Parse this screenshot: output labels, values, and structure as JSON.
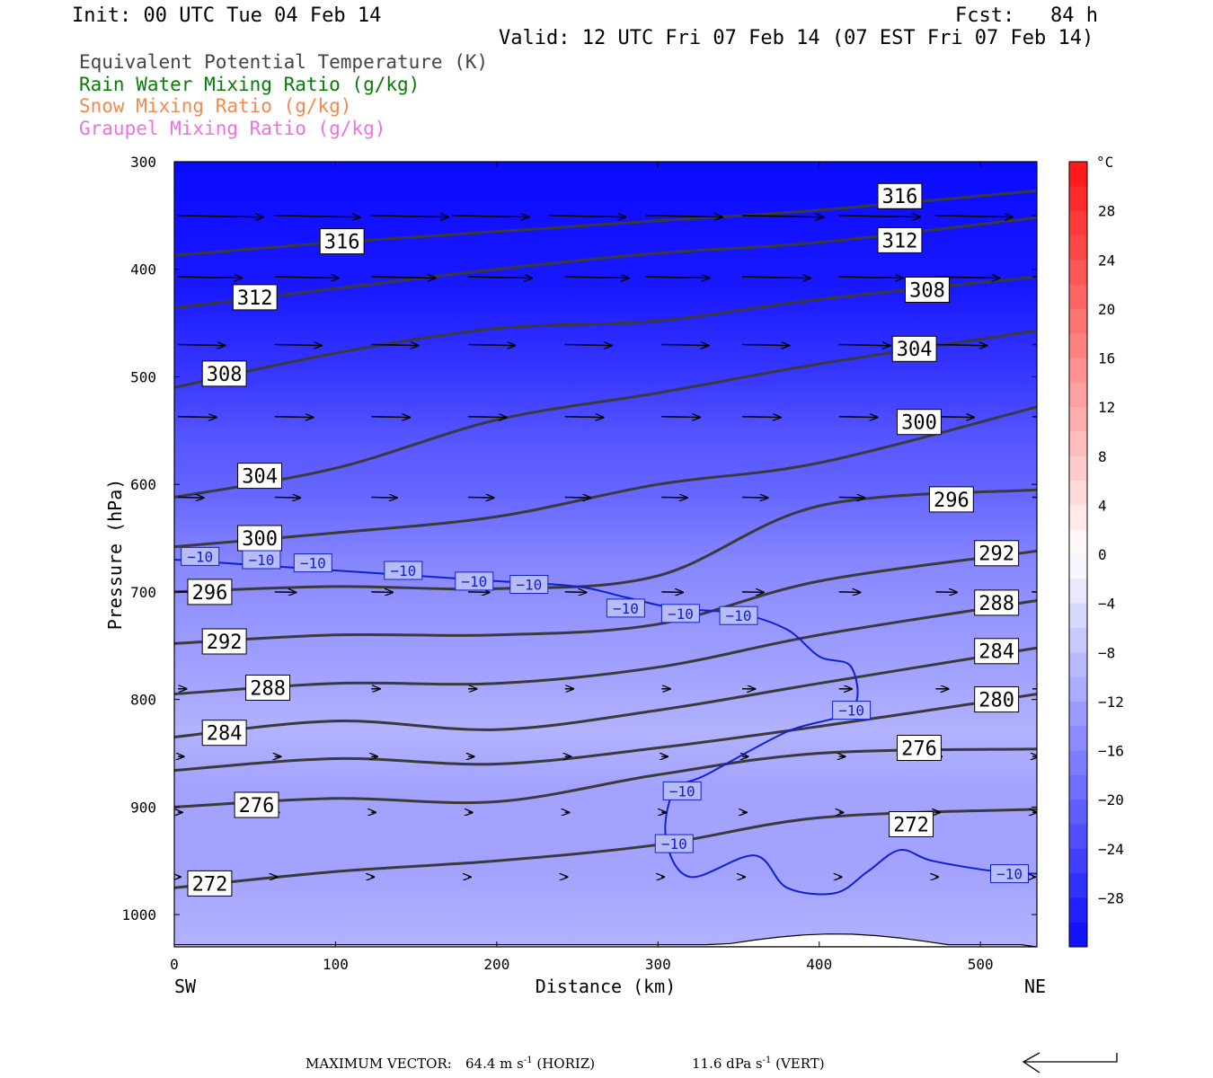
{
  "header": {
    "init": "Init: 00 UTC Tue 04 Feb 14",
    "fcst": "Fcst:   84 h",
    "valid": "Valid: 12 UTC Fri 07 Feb 14 (07 EST Fri 07 Feb 14)"
  },
  "fields": [
    {
      "label": "Equivalent Potential Temperature (K)",
      "color": "#444444"
    },
    {
      "label": "Rain Water Mixing Ratio (g/kg)",
      "color": "#0a7a0a"
    },
    {
      "label": "Snow Mixing Ratio (g/kg)",
      "color": "#f08a50"
    },
    {
      "label": "Graupel Mixing Ratio (g/kg)",
      "color": "#f070e0"
    }
  ],
  "footer": {
    "max_label": "MAXIMUM VECTOR:",
    "horiz_value": "64.4 m s",
    "horiz_exp": "-1",
    "horiz_unit": " (HORIZ)",
    "vert_value": "11.6 dPa s",
    "vert_exp": "-1",
    "vert_unit": " (VERT)"
  },
  "chart_data": {
    "type": "cross-section",
    "xlabel": "Distance (km)",
    "ylabel": "Pressure (hPa)",
    "x_left_label": "SW",
    "x_right_label": "NE",
    "xlim": [
      0,
      535
    ],
    "ylim": [
      300,
      1030
    ],
    "xticks": [
      0,
      100,
      200,
      300,
      400,
      500
    ],
    "yticks": [
      300,
      400,
      500,
      600,
      700,
      800,
      900,
      1000
    ],
    "colorbar": {
      "unit": "°C",
      "range": [
        -32,
        32
      ],
      "labels": [
        28,
        24,
        20,
        16,
        12,
        8,
        4,
        0,
        -4,
        -8,
        -12,
        -16,
        -20,
        -24,
        -28
      ]
    },
    "theta_e": [
      {
        "value": 316,
        "points": [
          [
            0,
            387
          ],
          [
            100,
            375
          ],
          [
            200,
            365
          ],
          [
            300,
            355
          ],
          [
            400,
            345
          ],
          [
            535,
            327
          ]
        ],
        "label": [
          104,
          374
        ],
        "label2": [
          450,
          332
        ]
      },
      {
        "value": 312,
        "points": [
          [
            0,
            436
          ],
          [
            100,
            418
          ],
          [
            200,
            400
          ],
          [
            300,
            385
          ],
          [
            400,
            375
          ],
          [
            535,
            352
          ]
        ],
        "label": [
          50,
          426
        ],
        "label2": [
          450,
          373
        ]
      },
      {
        "value": 308,
        "points": [
          [
            0,
            510
          ],
          [
            100,
            478
          ],
          [
            200,
            455
          ],
          [
            300,
            448
          ],
          [
            400,
            428
          ],
          [
            535,
            407
          ]
        ],
        "label": [
          31,
          497
        ],
        "label2": [
          467,
          419
        ]
      },
      {
        "value": 304,
        "points": [
          [
            0,
            612
          ],
          [
            100,
            585
          ],
          [
            200,
            540
          ],
          [
            300,
            515
          ],
          [
            400,
            488
          ],
          [
            535,
            457
          ]
        ],
        "label": [
          53,
          592
        ],
        "label2": [
          459,
          474
        ]
      },
      {
        "value": 300,
        "points": [
          [
            0,
            658
          ],
          [
            100,
            645
          ],
          [
            200,
            630
          ],
          [
            300,
            600
          ],
          [
            400,
            580
          ],
          [
            535,
            528
          ]
        ],
        "label": [
          53,
          650
        ],
        "label2": [
          462,
          542
        ]
      },
      {
        "value": 296,
        "points": [
          [
            0,
            700
          ],
          [
            100,
            695
          ],
          [
            200,
            697
          ],
          [
            300,
            685
          ],
          [
            400,
            620
          ],
          [
            535,
            605
          ]
        ],
        "label": [
          22,
          700
        ],
        "label2": [
          482,
          614
        ]
      },
      {
        "value": 292,
        "points": [
          [
            0,
            748
          ],
          [
            100,
            740
          ],
          [
            200,
            740
          ],
          [
            300,
            730
          ],
          [
            400,
            690
          ],
          [
            535,
            662
          ]
        ],
        "label": [
          31,
          746
        ],
        "label2": [
          510,
          664
        ]
      },
      {
        "value": 288,
        "points": [
          [
            0,
            795
          ],
          [
            100,
            785
          ],
          [
            200,
            785
          ],
          [
            300,
            770
          ],
          [
            400,
            740
          ],
          [
            535,
            708
          ]
        ],
        "label": [
          58,
          789
        ],
        "label2": [
          510,
          710
        ]
      },
      {
        "value": 284,
        "points": [
          [
            0,
            835
          ],
          [
            100,
            820
          ],
          [
            200,
            828
          ],
          [
            300,
            810
          ],
          [
            400,
            785
          ],
          [
            535,
            752
          ]
        ],
        "label": [
          31,
          831
        ],
        "label2": [
          510,
          755
        ]
      },
      {
        "value": 280,
        "points": [
          [
            0,
            866
          ],
          [
            100,
            855
          ],
          [
            200,
            860
          ],
          [
            300,
            845
          ],
          [
            400,
            825
          ],
          [
            535,
            795
          ]
        ],
        "label": [
          0,
          0
        ],
        "label2": [
          510,
          800
        ]
      },
      {
        "value": 276,
        "points": [
          [
            0,
            900
          ],
          [
            100,
            892
          ],
          [
            200,
            895
          ],
          [
            300,
            870
          ],
          [
            400,
            850
          ],
          [
            535,
            846
          ]
        ],
        "label": [
          51,
          898
        ],
        "label2": [
          462,
          845
        ]
      },
      {
        "value": 272,
        "points": [
          [
            0,
            975
          ],
          [
            100,
            960
          ],
          [
            200,
            950
          ],
          [
            300,
            935
          ],
          [
            400,
            910
          ],
          [
            535,
            902
          ]
        ],
        "label": [
          22,
          971
        ],
        "label2": [
          457,
          916
        ]
      }
    ],
    "isotherm_minus10": {
      "value": -10,
      "points": [
        [
          0,
          670
        ],
        [
          50,
          675
        ],
        [
          100,
          680
        ],
        [
          150,
          685
        ],
        [
          200,
          690
        ],
        [
          250,
          695
        ],
        [
          280,
          705
        ],
        [
          310,
          715
        ],
        [
          350,
          720
        ],
        [
          380,
          735
        ],
        [
          400,
          760
        ],
        [
          420,
          770
        ],
        [
          420,
          810
        ],
        [
          380,
          830
        ],
        [
          330,
          870
        ],
        [
          310,
          885
        ],
        [
          305,
          930
        ],
        [
          320,
          965
        ],
        [
          360,
          945
        ],
        [
          380,
          975
        ],
        [
          410,
          980
        ],
        [
          430,
          960
        ],
        [
          450,
          940
        ],
        [
          470,
          950
        ],
        [
          510,
          960
        ],
        [
          535,
          962
        ]
      ],
      "labels": [
        [
          16,
          667
        ],
        [
          54,
          670
        ],
        [
          86,
          673
        ],
        [
          142,
          680
        ],
        [
          186,
          690
        ],
        [
          220,
          693
        ],
        [
          280,
          715
        ],
        [
          314,
          720
        ],
        [
          350,
          722
        ],
        [
          420,
          810
        ],
        [
          315,
          885
        ],
        [
          310,
          934
        ],
        [
          518,
          962
        ]
      ]
    },
    "background_temp": [
      {
        "p": 300,
        "t": -32
      },
      {
        "p": 420,
        "t": -30
      },
      {
        "p": 500,
        "t": -26
      },
      {
        "p": 560,
        "t": -22
      },
      {
        "p": 610,
        "t": -20
      },
      {
        "p": 670,
        "t": -16
      },
      {
        "p": 720,
        "t": -14
      },
      {
        "p": 780,
        "t": -12
      },
      {
        "p": 830,
        "t": -10
      },
      {
        "p": 880,
        "t": -12
      },
      {
        "p": 960,
        "t": -12
      },
      {
        "p": 1030,
        "t": -10
      }
    ],
    "wind_vectors": [
      {
        "p": 350,
        "points": [
          [
            0,
            100
          ],
          [
            60,
            100
          ],
          [
            120,
            90
          ],
          [
            170,
            90
          ],
          [
            230,
            90
          ],
          [
            290,
            90
          ],
          [
            350,
            95
          ],
          [
            410,
            95
          ],
          [
            470,
            90
          ],
          [
            530,
            85
          ]
        ]
      },
      {
        "p": 407,
        "points": [
          [
            0,
            75
          ],
          [
            60,
            75
          ],
          [
            120,
            75
          ],
          [
            180,
            75
          ],
          [
            240,
            75
          ],
          [
            290,
            75
          ],
          [
            350,
            80
          ],
          [
            410,
            75
          ],
          [
            470,
            75
          ],
          [
            530,
            75
          ]
        ]
      },
      {
        "p": 470,
        "points": [
          [
            0,
            55
          ],
          [
            60,
            55
          ],
          [
            120,
            55
          ],
          [
            180,
            55
          ],
          [
            240,
            55
          ],
          [
            300,
            55
          ],
          [
            350,
            55
          ],
          [
            410,
            60
          ],
          [
            470,
            60
          ],
          [
            530,
            60
          ]
        ]
      },
      {
        "p": 537,
        "points": [
          [
            0,
            45
          ],
          [
            60,
            45
          ],
          [
            120,
            45
          ],
          [
            180,
            45
          ],
          [
            240,
            45
          ],
          [
            300,
            45
          ],
          [
            350,
            45
          ],
          [
            410,
            45
          ],
          [
            470,
            45
          ],
          [
            530,
            45
          ]
        ]
      },
      {
        "p": 612,
        "points": [
          [
            0,
            30
          ],
          [
            60,
            30
          ],
          [
            120,
            30
          ],
          [
            180,
            30
          ],
          [
            240,
            30
          ],
          [
            300,
            30
          ],
          [
            350,
            30
          ],
          [
            410,
            30
          ],
          [
            470,
            30
          ],
          [
            530,
            30
          ]
        ]
      },
      {
        "p": 700,
        "points": [
          [
            0,
            25
          ],
          [
            60,
            25
          ],
          [
            120,
            25
          ],
          [
            180,
            25
          ],
          [
            240,
            25
          ],
          [
            300,
            25
          ],
          [
            350,
            25
          ],
          [
            410,
            25
          ],
          [
            470,
            25
          ],
          [
            530,
            25
          ]
        ]
      },
      {
        "p": 790,
        "points": [
          [
            0,
            10
          ],
          [
            60,
            10
          ],
          [
            120,
            10
          ],
          [
            180,
            10
          ],
          [
            240,
            10
          ],
          [
            300,
            10
          ],
          [
            350,
            15
          ],
          [
            410,
            15
          ],
          [
            470,
            15
          ],
          [
            530,
            15
          ]
        ]
      },
      {
        "p": 853,
        "points": [
          [
            0,
            7
          ],
          [
            60,
            7
          ],
          [
            120,
            7
          ],
          [
            180,
            7
          ],
          [
            240,
            7
          ],
          [
            300,
            7
          ],
          [
            350,
            7
          ],
          [
            410,
            7
          ],
          [
            470,
            7
          ],
          [
            530,
            7
          ]
        ]
      },
      {
        "p": 905,
        "points": [
          [
            0,
            5
          ],
          [
            60,
            5
          ],
          [
            120,
            5
          ],
          [
            180,
            5
          ],
          [
            240,
            5
          ],
          [
            300,
            5
          ],
          [
            350,
            5
          ],
          [
            410,
            5
          ],
          [
            470,
            5
          ],
          [
            530,
            5
          ]
        ]
      },
      {
        "p": 965,
        "points": [
          [
            0,
            3
          ],
          [
            60,
            3
          ],
          [
            120,
            3
          ],
          [
            180,
            3
          ],
          [
            240,
            3
          ],
          [
            300,
            3
          ],
          [
            350,
            3
          ],
          [
            410,
            3
          ],
          [
            470,
            3
          ],
          [
            530,
            3
          ]
        ]
      }
    ]
  }
}
